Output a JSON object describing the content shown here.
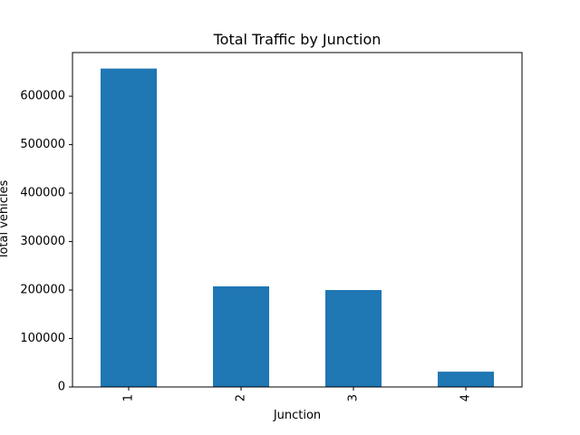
{
  "chart_data": {
    "type": "bar",
    "title": "Total Traffic by Junction",
    "xlabel": "Junction",
    "ylabel": "Total vehicles",
    "categories": [
      "1",
      "2",
      "3",
      "4"
    ],
    "values": [
      657000,
      207600,
      200000,
      31600
    ],
    "ylim": [
      0,
      690000
    ],
    "yticks": [
      0,
      100000,
      200000,
      300000,
      400000,
      500000,
      600000
    ],
    "ytick_labels": [
      "0",
      "100000",
      "200000",
      "300000",
      "400000",
      "500000",
      "600000"
    ],
    "xtick_rotation": "vertical",
    "bar_color": "#1f77b4",
    "grid": false,
    "legend": "none"
  }
}
